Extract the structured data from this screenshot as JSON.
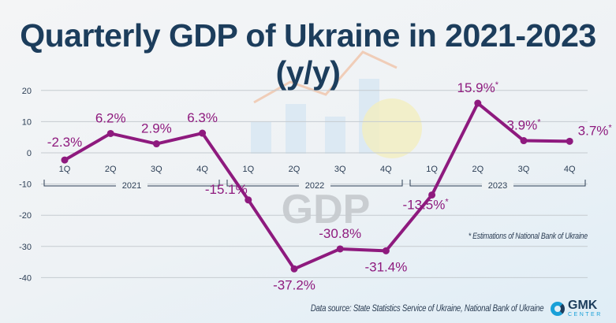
{
  "chart_data": {
    "type": "line",
    "title": "Quarterly GDP of Ukraine in 2021-2023 (y/y)",
    "categories": [
      "1Q",
      "2Q",
      "3Q",
      "4Q",
      "1Q",
      "2Q",
      "3Q",
      "4Q",
      "1Q",
      "2Q",
      "3Q",
      "4Q"
    ],
    "groups": [
      "2021",
      "2022",
      "2023"
    ],
    "series": [
      {
        "values": [
          -2.3,
          6.2,
          2.9,
          6.3,
          -15.1,
          -37.2,
          -30.8,
          -31.4,
          -13.5,
          15.9,
          3.9,
          3.7
        ],
        "labels": [
          "-2.3%",
          "6.2%",
          "2.9%",
          "6.3%",
          "-15.1%",
          "-37.2%",
          "-30.8%",
          "-31.4%",
          "-13.5%",
          "15.9%",
          "3.9%",
          "3.7%"
        ],
        "estimated": [
          false,
          false,
          false,
          false,
          false,
          false,
          false,
          false,
          true,
          true,
          true,
          true
        ]
      }
    ],
    "yticks": [
      20,
      10,
      0,
      -10,
      -20,
      -30,
      -40
    ],
    "ylim": [
      -45,
      25
    ],
    "grid": true,
    "color": "#8e1a7e",
    "background_text": "GDP"
  },
  "notes": {
    "estimation": "* Estimations of National Bank of Ukraine",
    "source": "Data source: State Statistics Service of Ukraine, National Bank of Ukraine"
  },
  "logo": {
    "name": "GMK",
    "sub": "CENTER"
  }
}
